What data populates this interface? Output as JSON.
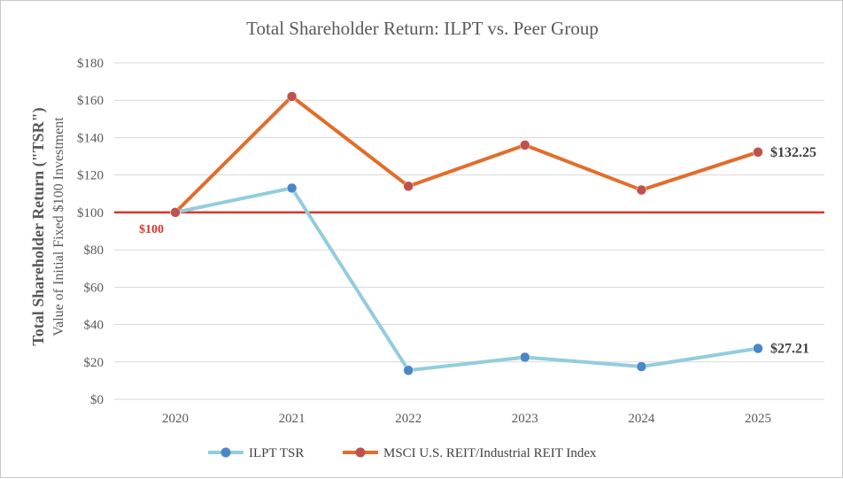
{
  "chart_data": {
    "type": "line",
    "title": "Total Shareholder Return: ILPT vs. Peer Group",
    "ylabel_main": "Total Shareholder Return (\"TSR\")",
    "ylabel_sub": "Value of Initial Fixed $100 Investment",
    "xlabel": "",
    "categories": [
      "2020",
      "2021",
      "2022",
      "2023",
      "2024",
      "2025"
    ],
    "ylim": [
      0,
      180
    ],
    "y_ticks": [
      0,
      20,
      40,
      60,
      80,
      100,
      120,
      140,
      160,
      180
    ],
    "y_tick_labels": [
      "$0",
      "$20",
      "$40",
      "$60",
      "$80",
      "$100",
      "$120",
      "$140",
      "$160",
      "$180"
    ],
    "grid": true,
    "series": [
      {
        "name": "ILPT TSR",
        "line_color": "#92cddc",
        "marker_color": "#4a86c8",
        "values": [
          100,
          113,
          15.5,
          22.5,
          17.5,
          27.21
        ],
        "end_label": "$27.21"
      },
      {
        "name": "MSCI U.S. REIT/Industrial REIT Index",
        "line_color": "#e36c2a",
        "marker_color": "#c0504d",
        "values": [
          100,
          162,
          114,
          136,
          112,
          132.25
        ],
        "end_label": "$132.25"
      }
    ],
    "reference_line": {
      "value": 100,
      "label": "$100",
      "color": "#e03127"
    },
    "legend_position": "bottom"
  }
}
